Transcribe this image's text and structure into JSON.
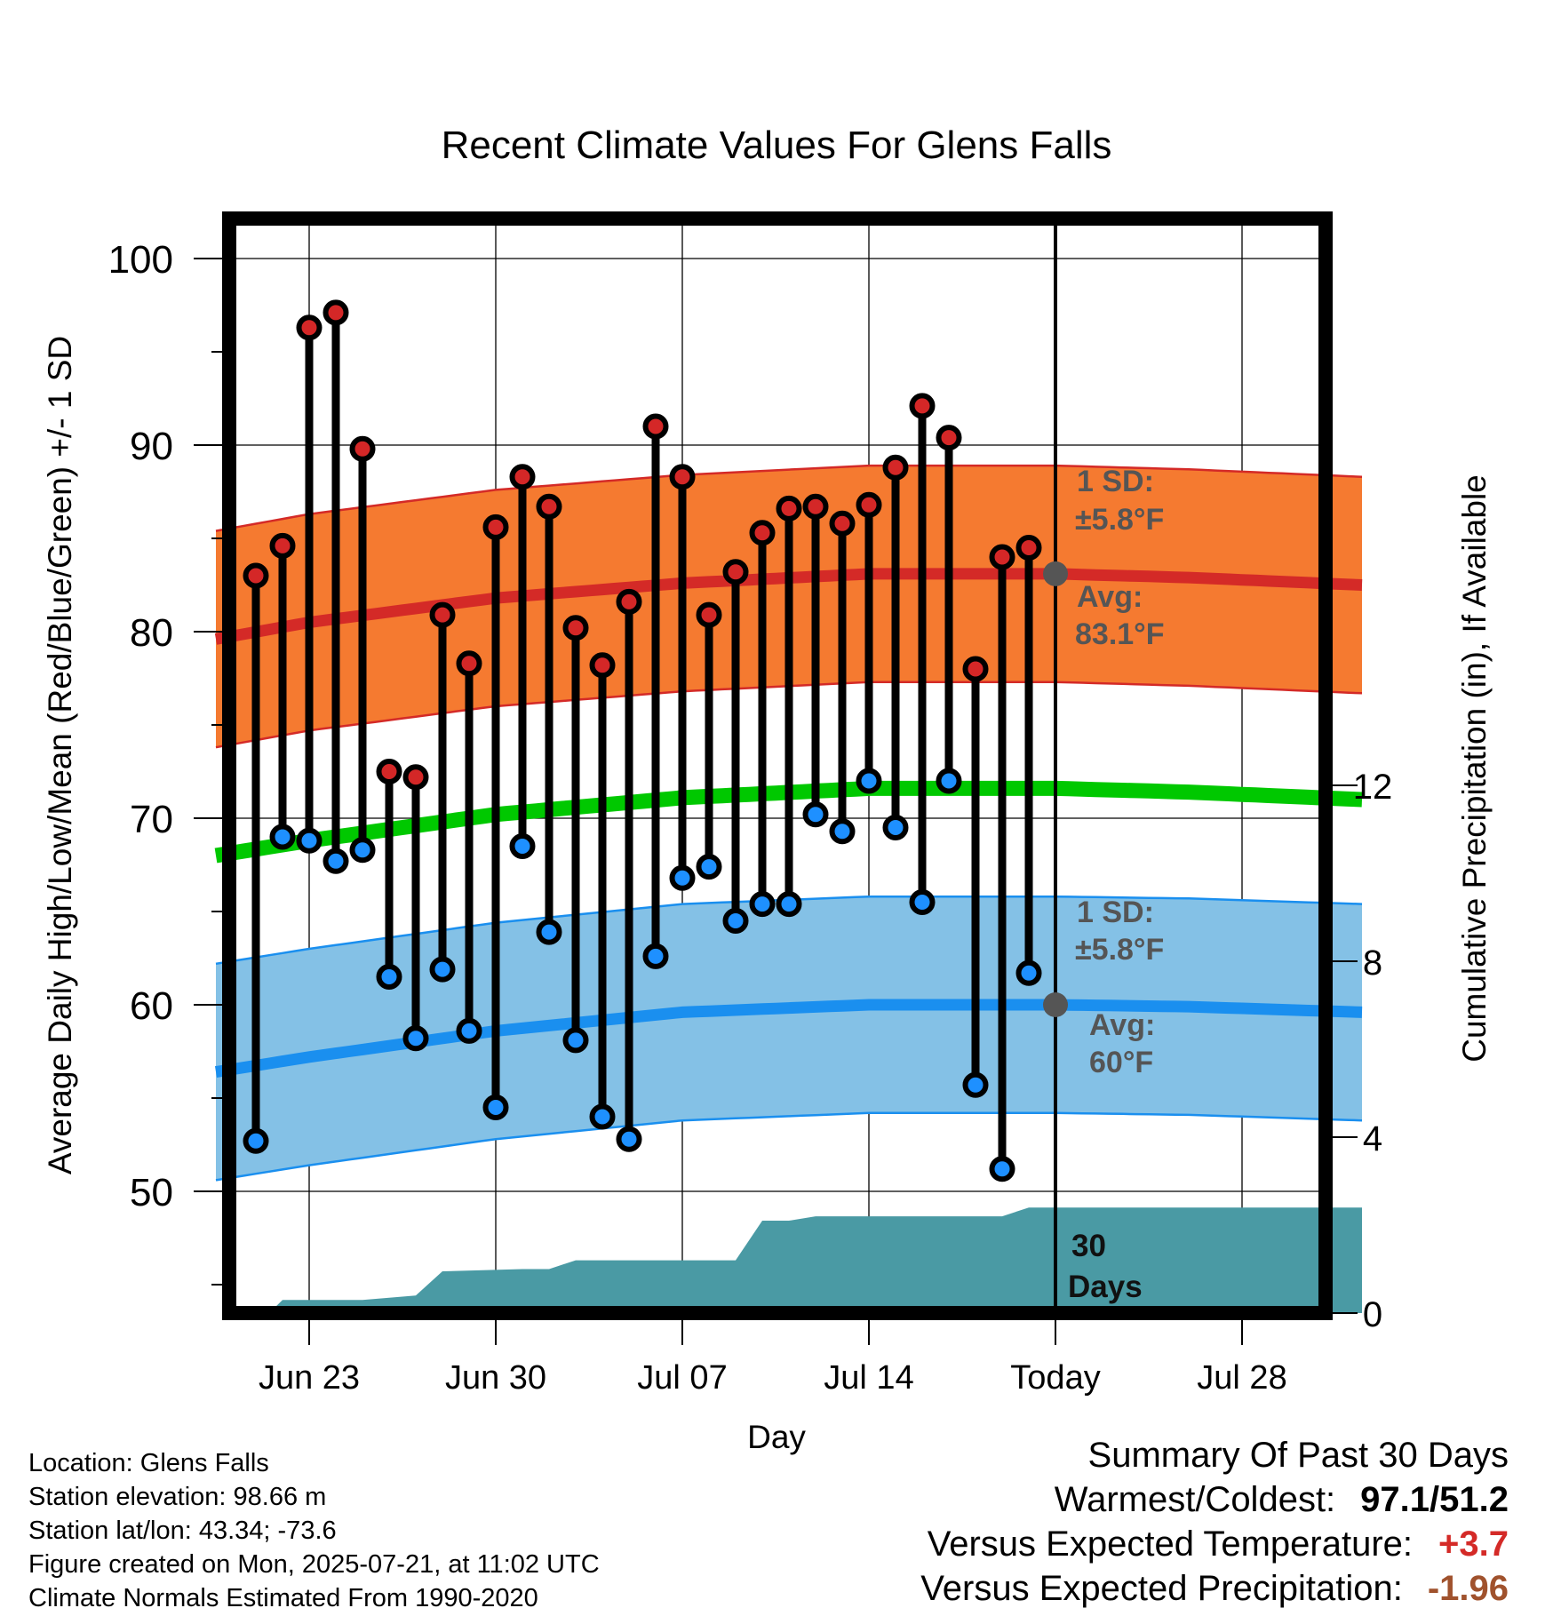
{
  "chart_data": {
    "type": "line",
    "title": "Recent Climate Values For Glens Falls",
    "xlabel": "Day",
    "ylabel": "Average Daily High/Low/Mean (Red/Blue/Green) +/- 1 SD",
    "y2label": "Cumulative Precipitation (in), If Available",
    "ylim": [
      43,
      101
    ],
    "y2lim": [
      0,
      14.4
    ],
    "yticks": [
      50,
      60,
      70,
      80,
      90,
      100
    ],
    "y2ticks": [
      0,
      4,
      8,
      12
    ],
    "xrange_days": [
      -32.5,
      11.5
    ],
    "xticks": [
      {
        "day": -28,
        "label": "Jun 23"
      },
      {
        "day": -21,
        "label": "Jun 30"
      },
      {
        "day": -14,
        "label": "Jul 07"
      },
      {
        "day": -7,
        "label": "Jul 14"
      },
      {
        "day": 0,
        "label": "Today"
      },
      {
        "day": 7,
        "label": "Jul 28"
      }
    ],
    "daily_high": [
      83.0,
      84.6,
      96.3,
      97.1,
      89.8,
      72.5,
      72.2,
      80.9,
      78.3,
      85.6,
      88.3,
      86.7,
      80.2,
      78.2,
      81.6,
      91.0,
      88.3,
      80.9,
      83.2,
      85.3,
      86.6,
      86.7,
      85.8,
      86.8,
      88.8,
      92.1,
      90.4,
      78.0,
      84.0,
      84.5
    ],
    "daily_low": [
      52.7,
      69.0,
      68.8,
      67.7,
      68.3,
      61.5,
      58.2,
      61.9,
      58.6,
      54.5,
      68.5,
      63.9,
      58.1,
      54.0,
      52.8,
      62.6,
      66.8,
      67.4,
      64.5,
      65.4,
      65.4,
      70.2,
      69.3,
      72.0,
      69.5,
      65.5,
      72.0,
      55.7,
      51.2,
      61.7
    ],
    "normal_high": {
      "day": [
        -31.5,
        -28,
        -21,
        -14,
        -7,
        -3,
        0,
        5,
        11.5
      ],
      "value": [
        79.6,
        80.5,
        81.8,
        82.6,
        83.1,
        83.1,
        83.1,
        82.9,
        82.5
      ]
    },
    "normal_low": {
      "day": [
        -31.5,
        -28,
        -21,
        -14,
        -7,
        -3,
        0,
        5,
        11.5
      ],
      "value": [
        56.4,
        57.2,
        58.6,
        59.6,
        60.0,
        60.0,
        60.0,
        59.9,
        59.6
      ]
    },
    "normal_mean": {
      "day": [
        -31.5,
        -28,
        -21,
        -14,
        -7,
        -3,
        0,
        5,
        11.5
      ],
      "value": [
        68.0,
        68.8,
        70.2,
        71.1,
        71.6,
        71.6,
        71.6,
        71.4,
        71.0
      ]
    },
    "high_sd": 5.8,
    "low_sd": 5.8,
    "precip_cumulative": {
      "day": [
        -31.5,
        -29.5,
        -29,
        -26,
        -25,
        -24,
        -23,
        -20,
        -19,
        -18,
        -12,
        -11,
        -10,
        -9,
        -7,
        -2,
        -1,
        11.5
      ],
      "value": [
        0,
        0,
        0.3,
        0.3,
        0.35,
        0.4,
        0.95,
        1.0,
        1.0,
        1.2,
        1.2,
        2.1,
        2.1,
        2.2,
        2.2,
        2.2,
        2.4,
        2.4
      ]
    },
    "annotations": {
      "high_sd": "1 SD:",
      "high_sd_val": "±5.8°F",
      "high_avg": "Avg:",
      "high_avg_val": "83.1°F",
      "low_sd": "1 SD:",
      "low_sd_val": "±5.8°F",
      "low_avg": "Avg:",
      "low_avg_val": "60°F",
      "window_1": "30",
      "window_2": "Days"
    },
    "colors": {
      "high_band": "#f57a30",
      "high_line": "#d42a27",
      "low_band": "#84c1e6",
      "low_line": "#1a8fef",
      "mean_line": "#00c800",
      "precip": "#4a9aa4",
      "high_dot": "#d42727",
      "low_dot": "#1e90ff",
      "annotation": "#555555"
    }
  },
  "info": {
    "location": "Location: Glens Falls",
    "elevation": "Station elevation: 98.66 m",
    "latlon": "Station lat/lon: 43.34; -73.6",
    "created": "Figure created on Mon, 2025-07-21, at 11:02 UTC",
    "normals": "Climate Normals Estimated From 1990-2020"
  },
  "summary": {
    "heading": "Summary Of Past 30 Days",
    "warm_cold_label": "Warmest/Coldest:",
    "warm_cold_value": "97.1/51.2",
    "temp_label": "Versus Expected Temperature:",
    "temp_value": "+3.7",
    "temp_color": "#d42a27",
    "precip_label": "Versus Expected Precipitation:",
    "precip_value": "-1.96",
    "precip_color": "#a0522d"
  }
}
